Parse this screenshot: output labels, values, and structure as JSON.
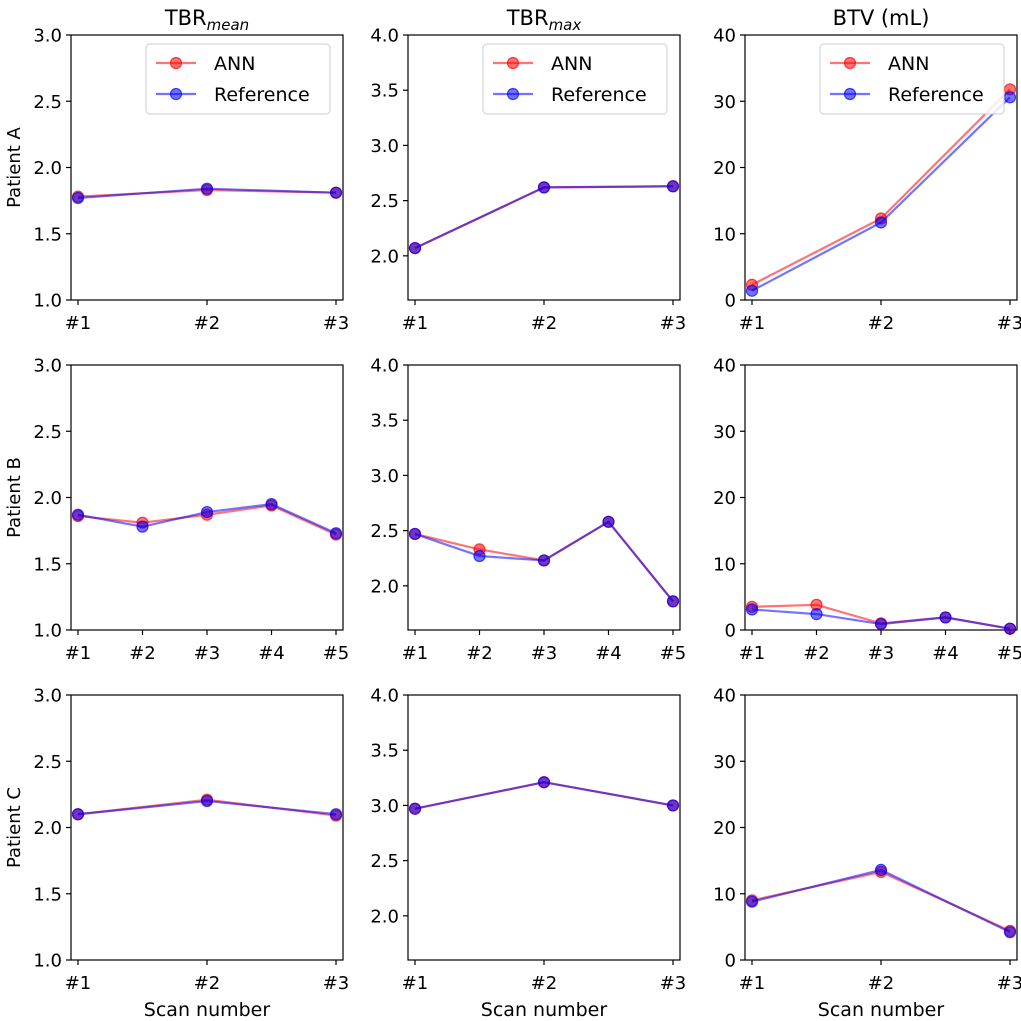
{
  "legend": {
    "entries": [
      "ANN",
      "Reference"
    ],
    "placement": "upper-center"
  },
  "colors": {
    "ann": "#ff0000",
    "reference": "#0000ff"
  },
  "xlabel": "Scan number",
  "column_titles": [
    {
      "base": "TBR",
      "sub": "mean"
    },
    {
      "base": "TBR",
      "sub": "max"
    },
    {
      "base": "BTV (mL)",
      "sub": ""
    }
  ],
  "row_labels": [
    "Patient A",
    "Patient B",
    "Patient C"
  ],
  "chart_data": [
    {
      "type": "line",
      "row": "Patient A",
      "metric": "TBRmean",
      "categories": [
        "#1",
        "#2",
        "#3"
      ],
      "ylim": [
        1.0,
        3.0
      ],
      "yticks": [
        "1.0",
        "1.5",
        "2.0",
        "2.5",
        "3.0"
      ],
      "legend": true,
      "series": [
        {
          "name": "ANN",
          "values": [
            1.78,
            1.83,
            1.81
          ]
        },
        {
          "name": "Reference",
          "values": [
            1.77,
            1.84,
            1.81
          ]
        }
      ]
    },
    {
      "type": "line",
      "row": "Patient A",
      "metric": "TBRmax",
      "categories": [
        "#1",
        "#2",
        "#3"
      ],
      "ylim": [
        1.6,
        4.0
      ],
      "yticks": [
        "2.0",
        "2.5",
        "3.0",
        "3.5",
        "4.0"
      ],
      "legend": true,
      "series": [
        {
          "name": "ANN",
          "values": [
            2.07,
            2.62,
            2.63
          ]
        },
        {
          "name": "Reference",
          "values": [
            2.07,
            2.62,
            2.63
          ]
        }
      ]
    },
    {
      "type": "line",
      "row": "Patient A",
      "metric": "BTV (mL)",
      "categories": [
        "#1",
        "#2",
        "#3"
      ],
      "ylim": [
        0,
        40
      ],
      "yticks": [
        "0",
        "10",
        "20",
        "30",
        "40"
      ],
      "legend": true,
      "series": [
        {
          "name": "ANN",
          "values": [
            2.3,
            12.3,
            31.8
          ]
        },
        {
          "name": "Reference",
          "values": [
            1.4,
            11.7,
            30.6
          ]
        }
      ]
    },
    {
      "type": "line",
      "row": "Patient B",
      "metric": "TBRmean",
      "categories": [
        "#1",
        "#2",
        "#3",
        "#4",
        "#5"
      ],
      "ylim": [
        1.0,
        3.0
      ],
      "yticks": [
        "1.0",
        "1.5",
        "2.0",
        "2.5",
        "3.0"
      ],
      "legend": false,
      "series": [
        {
          "name": "ANN",
          "values": [
            1.86,
            1.81,
            1.87,
            1.94,
            1.72
          ]
        },
        {
          "name": "Reference",
          "values": [
            1.87,
            1.78,
            1.89,
            1.95,
            1.73
          ]
        }
      ]
    },
    {
      "type": "line",
      "row": "Patient B",
      "metric": "TBRmax",
      "categories": [
        "#1",
        "#2",
        "#3",
        "#4",
        "#5"
      ],
      "ylim": [
        1.6,
        4.0
      ],
      "yticks": [
        "2.0",
        "2.5",
        "3.0",
        "3.5",
        "4.0"
      ],
      "legend": false,
      "series": [
        {
          "name": "ANN",
          "values": [
            2.47,
            2.33,
            2.23,
            2.58,
            1.86
          ]
        },
        {
          "name": "Reference",
          "values": [
            2.47,
            2.27,
            2.23,
            2.58,
            1.86
          ]
        }
      ]
    },
    {
      "type": "line",
      "row": "Patient B",
      "metric": "BTV (mL)",
      "categories": [
        "#1",
        "#2",
        "#3",
        "#4",
        "#5"
      ],
      "ylim": [
        0,
        40
      ],
      "yticks": [
        "0",
        "10",
        "20",
        "30",
        "40"
      ],
      "legend": false,
      "series": [
        {
          "name": "ANN",
          "values": [
            3.5,
            3.8,
            1.0,
            1.9,
            0.2
          ]
        },
        {
          "name": "Reference",
          "values": [
            3.1,
            2.4,
            0.9,
            1.9,
            0.2
          ]
        }
      ]
    },
    {
      "type": "line",
      "row": "Patient C",
      "metric": "TBRmean",
      "categories": [
        "#1",
        "#2",
        "#3"
      ],
      "ylim": [
        1.0,
        3.0
      ],
      "yticks": [
        "1.0",
        "1.5",
        "2.0",
        "2.5",
        "3.0"
      ],
      "legend": false,
      "series": [
        {
          "name": "ANN",
          "values": [
            2.1,
            2.21,
            2.09
          ]
        },
        {
          "name": "Reference",
          "values": [
            2.1,
            2.2,
            2.1
          ]
        }
      ]
    },
    {
      "type": "line",
      "row": "Patient C",
      "metric": "TBRmax",
      "categories": [
        "#1",
        "#2",
        "#3"
      ],
      "ylim": [
        1.6,
        4.0
      ],
      "yticks": [
        "2.0",
        "2.5",
        "3.0",
        "3.5",
        "4.0"
      ],
      "legend": false,
      "series": [
        {
          "name": "ANN",
          "values": [
            2.97,
            3.21,
            3.0
          ]
        },
        {
          "name": "Reference",
          "values": [
            2.97,
            3.21,
            3.0
          ]
        }
      ]
    },
    {
      "type": "line",
      "row": "Patient C",
      "metric": "BTV (mL)",
      "categories": [
        "#1",
        "#2",
        "#3"
      ],
      "ylim": [
        0,
        40
      ],
      "yticks": [
        "0",
        "10",
        "20",
        "30",
        "40"
      ],
      "legend": false,
      "series": [
        {
          "name": "ANN",
          "values": [
            9.0,
            13.3,
            4.4
          ]
        },
        {
          "name": "Reference",
          "values": [
            8.8,
            13.6,
            4.2
          ]
        }
      ]
    }
  ]
}
